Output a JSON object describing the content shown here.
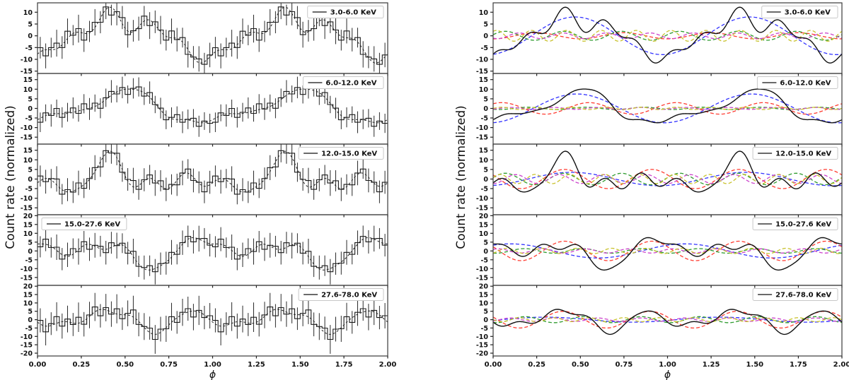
{
  "chart_data": {
    "type": "line",
    "xlabel": "ϕ",
    "ylabel": "Count rate (normalized)",
    "x_range": [
      0,
      2
    ],
    "xticks": [
      0,
      0.25,
      0.5,
      0.75,
      1.0,
      1.25,
      1.5,
      1.75,
      2.0
    ],
    "xtick_labels": [
      "0.00",
      "0.25",
      "0.50",
      "0.75",
      "1.00",
      "1.25",
      "1.50",
      "1.75",
      "2.00"
    ],
    "bins_per_cycle": 32,
    "grid": false,
    "figures": [
      {
        "id": "pulse-profiles",
        "content": "binned count-rate profiles with error bars and dashed Fourier-fit curve"
      },
      {
        "id": "harmonic-decomposition",
        "content": "solid black total fit with dashed individual harmonic components k=1..5"
      }
    ],
    "series_colors": {
      "data": "#2b2b2b",
      "steps": "#1a1a1a",
      "fit": "#222222",
      "total": "#111111",
      "harmonics": [
        "#3333ff",
        "#ff3b30",
        "#2e9b2e",
        "#cc44cc",
        "#c9c22e"
      ]
    },
    "legend_border_color": "#c8c8c8",
    "panels": [
      {
        "label": "3.0-6.0 KeV",
        "ylim": [
          -16,
          14
        ],
        "yticks": [
          10,
          5,
          0,
          -5,
          -10,
          -15
        ],
        "legend_position_data_fig": "right",
        "legend_position_harmonics_fig": "right",
        "fit_harmonics": [
          {
            "k": 1,
            "amplitude": 8.0,
            "peak_phase": 0.47
          },
          {
            "k": 2,
            "amplitude": 1.3,
            "peak_phase": 0.25
          },
          {
            "k": 3,
            "amplitude": 1.9,
            "peak_phase": 0.07
          },
          {
            "k": 4,
            "amplitude": 1.2,
            "peak_phase": 0.15
          },
          {
            "k": 5,
            "amplitude": 2.3,
            "peak_phase": 0.02
          }
        ],
        "bin_offsets": [
          1.8,
          -2.6,
          0.9,
          2.4,
          -1.2,
          3.1,
          -0.7,
          1.5,
          -2.9,
          0.6,
          2.2,
          -1.8,
          1.1,
          -3.2,
          0.8,
          2.6,
          -1.5,
          0.4,
          -0.9,
          2.1,
          -2.3,
          1.3,
          0.7,
          -1.6,
          2.9,
          -0.5,
          1.9,
          -2.1,
          0.3,
          1.6,
          -1.1,
          0.8
        ],
        "bin_errors": [
          4.6,
          5.3,
          4.2,
          5.7,
          4.8,
          5.4,
          4.3,
          5.9,
          5.0,
          4.5,
          5.6,
          4.7,
          5.2,
          4.4,
          5.8,
          4.9,
          5.5,
          4.6,
          5.1,
          4.3,
          5.7,
          4.8,
          6.0,
          4.4,
          5.3,
          5.0,
          4.2,
          5.6,
          4.7,
          5.4,
          4.9,
          5.2
        ]
      },
      {
        "label": "6.0-12.0 KeV",
        "ylim": [
          -18.6,
          18.2
        ],
        "yticks": [
          15,
          10,
          5,
          0,
          -5,
          -10,
          -15
        ],
        "legend_position_data_fig": "right",
        "legend_position_harmonics_fig": "right",
        "fit_harmonics": [
          {
            "k": 1,
            "amplitude": 7.5,
            "peak_phase": 0.48
          },
          {
            "k": 2,
            "amplitude": 3.0,
            "peak_phase": 0.05
          },
          {
            "k": 3,
            "amplitude": 0.6,
            "peak_phase": 0.2
          },
          {
            "k": 4,
            "amplitude": 0.5,
            "peak_phase": 0.1
          },
          {
            "k": 5,
            "amplitude": 0.6,
            "peak_phase": 0.05
          }
        ],
        "bin_offsets": [
          -2.1,
          1.4,
          -0.8,
          2.7,
          -1.9,
          0.6,
          2.3,
          -1.3,
          3.0,
          -0.4,
          1.7,
          -2.5,
          0.9,
          2.0,
          -1.1,
          1.2,
          -2.8,
          0.5,
          1.8,
          -1.7,
          2.4,
          -0.6,
          1.0,
          -2.2,
          0.7,
          2.6,
          -1.4,
          0.3,
          1.5,
          -2.0,
          0.8,
          -1.2
        ],
        "bin_errors": [
          5.1,
          4.4,
          5.8,
          4.6,
          5.3,
          4.9,
          5.5,
          4.3,
          5.0,
          5.7,
          4.5,
          5.2,
          4.8,
          5.9,
          4.4,
          5.6,
          4.7,
          5.3,
          5.0,
          4.6,
          5.8,
          4.5,
          5.4,
          4.9,
          5.2,
          4.3,
          5.7,
          5.1,
          4.8,
          5.5,
          4.6,
          5.0
        ]
      },
      {
        "label": "12.0-15.0 KeV",
        "ylim": [
          -18.6,
          18.2
        ],
        "yticks": [
          15,
          10,
          5,
          0,
          -5,
          -10,
          -15
        ],
        "legend_position_data_fig": "right",
        "legend_position_harmonics_fig": "right",
        "fit_harmonics": [
          {
            "k": 1,
            "amplitude": 3.5,
            "peak_phase": 0.45
          },
          {
            "k": 2,
            "amplitude": 5.0,
            "peak_phase": 0.41
          },
          {
            "k": 3,
            "amplitude": 3.0,
            "peak_phase": 0.07
          },
          {
            "k": 4,
            "amplitude": 2.3,
            "peak_phase": 0.13
          },
          {
            "k": 5,
            "amplitude": 2.4,
            "peak_phase": 0.04
          }
        ],
        "bin_offsets": [
          2.5,
          -1.7,
          0.8,
          3.1,
          -2.3,
          1.2,
          -0.5,
          2.8,
          -1.9,
          0.4,
          2.0,
          -2.7,
          1.5,
          -0.8,
          2.3,
          -1.4,
          0.9,
          3.3,
          -2.0,
          0.6,
          1.8,
          -1.2,
          2.6,
          -0.3,
          1.1,
          -2.4,
          0.7,
          2.2,
          -1.6,
          0.5,
          -2.9,
          1.3
        ],
        "bin_errors": [
          5.5,
          6.2,
          5.0,
          6.6,
          5.3,
          6.0,
          5.7,
          6.4,
          5.1,
          5.8,
          6.5,
          5.2,
          6.1,
          5.6,
          6.3,
          5.0,
          5.9,
          6.6,
          5.4,
          6.0,
          5.2,
          6.7,
          5.5,
          6.1,
          5.3,
          5.8,
          6.4,
          5.1,
          6.2,
          5.7,
          5.9,
          6.0
        ]
      },
      {
        "label": "15.0-27.6 KeV",
        "ylim": [
          -19.5,
          20.5
        ],
        "yticks": [
          20,
          15,
          10,
          5,
          0,
          -5,
          -10,
          -15
        ],
        "legend_position_data_fig": "left",
        "legend_position_harmonics_fig": "right",
        "fit_harmonics": [
          {
            "k": 1,
            "amplitude": 4.0,
            "peak_phase": 0.1
          },
          {
            "k": 2,
            "amplitude": 5.5,
            "peak_phase": 0.41
          },
          {
            "k": 3,
            "amplitude": 1.3,
            "peak_phase": 0.18
          },
          {
            "k": 4,
            "amplitude": 1.2,
            "peak_phase": 0.03
          },
          {
            "k": 5,
            "amplitude": 1.5,
            "peak_phase": 0.08
          }
        ],
        "bin_offsets": [
          -1.6,
          2.9,
          -0.7,
          1.8,
          -2.5,
          0.9,
          3.2,
          -1.1,
          2.1,
          -2.8,
          0.5,
          1.4,
          -1.9,
          2.6,
          -0.4,
          1.0,
          -2.2,
          3.0,
          -1.3,
          0.7,
          2.4,
          -1.8,
          1.2,
          -0.6,
          2.7,
          -2.0,
          0.8,
          1.6,
          -2.4,
          0.3,
          1.9,
          -0.9
        ],
        "bin_errors": [
          6.0,
          6.8,
          5.7,
          7.2,
          6.3,
          6.9,
          5.8,
          7.4,
          6.1,
          6.6,
          7.0,
          5.9,
          6.7,
          6.2,
          7.3,
          5.6,
          6.4,
          7.1,
          6.0,
          6.8,
          5.8,
          7.2,
          6.3,
          6.5,
          7.0,
          5.7,
          6.9,
          6.1,
          6.6,
          7.3,
          5.9,
          6.4
        ]
      },
      {
        "label": "27.6-78.0 KeV",
        "ylim": [
          -21.7,
          20.5
        ],
        "yticks": [
          20,
          15,
          10,
          5,
          0,
          -5,
          -10,
          -15,
          -20
        ],
        "legend_position_data_fig": "right",
        "legend_position_harmonics_fig": "right",
        "fit_harmonics": [
          {
            "k": 1,
            "amplitude": 1.5,
            "peak_phase": 0.3
          },
          {
            "k": 2,
            "amplitude": 5.0,
            "peak_phase": 0.4
          },
          {
            "k": 3,
            "amplitude": 1.8,
            "peak_phase": 0.85
          },
          {
            "k": 4,
            "amplitude": 1.0,
            "peak_phase": 0.1
          },
          {
            "k": 5,
            "amplitude": 1.2,
            "peak_phase": 0.15
          }
        ],
        "bin_offsets": [
          2.2,
          -3.4,
          1.1,
          4.0,
          -2.6,
          1.7,
          -0.9,
          3.5,
          -2.1,
          0.8,
          2.9,
          -3.8,
          1.4,
          -1.2,
          3.1,
          -2.4,
          1.0,
          4.2,
          -1.8,
          0.5,
          2.6,
          -3.0,
          1.9,
          -0.7,
          3.3,
          -2.8,
          1.2,
          2.0,
          -3.6,
          0.9,
          -1.5,
          2.4
        ],
        "bin_errors": [
          7.2,
          8.1,
          6.8,
          8.6,
          7.5,
          8.0,
          6.9,
          8.8,
          7.3,
          7.9,
          8.4,
          7.0,
          8.2,
          7.6,
          8.7,
          6.7,
          7.7,
          8.5,
          7.1,
          8.0,
          6.9,
          8.6,
          7.4,
          7.8,
          8.3,
          6.8,
          8.1,
          7.2,
          7.9,
          8.7,
          7.0,
          7.6
        ]
      }
    ]
  }
}
